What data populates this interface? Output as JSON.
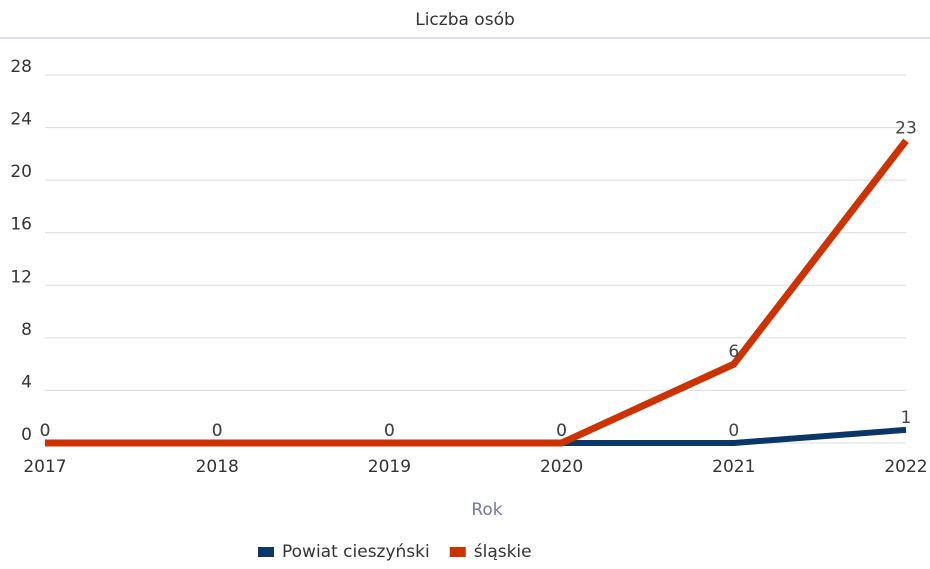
{
  "chart_data": {
    "type": "line",
    "title": "Liczba osób",
    "x_label": "Rok",
    "categories": [
      "2017",
      "2018",
      "2019",
      "2020",
      "2021",
      "2022"
    ],
    "series": [
      {
        "name": "Powiat cieszyński",
        "color": "#0b3768",
        "values": [
          0,
          0,
          0,
          0,
          0,
          1
        ]
      },
      {
        "name": "śląskie",
        "color": "#cc3300",
        "values": [
          0,
          0,
          0,
          0,
          6,
          23
        ]
      }
    ],
    "ylim": [
      0,
      28
    ],
    "yticks": [
      0,
      4,
      8,
      12,
      16,
      20,
      24,
      28
    ],
    "grid": true,
    "legend": "bottom"
  }
}
